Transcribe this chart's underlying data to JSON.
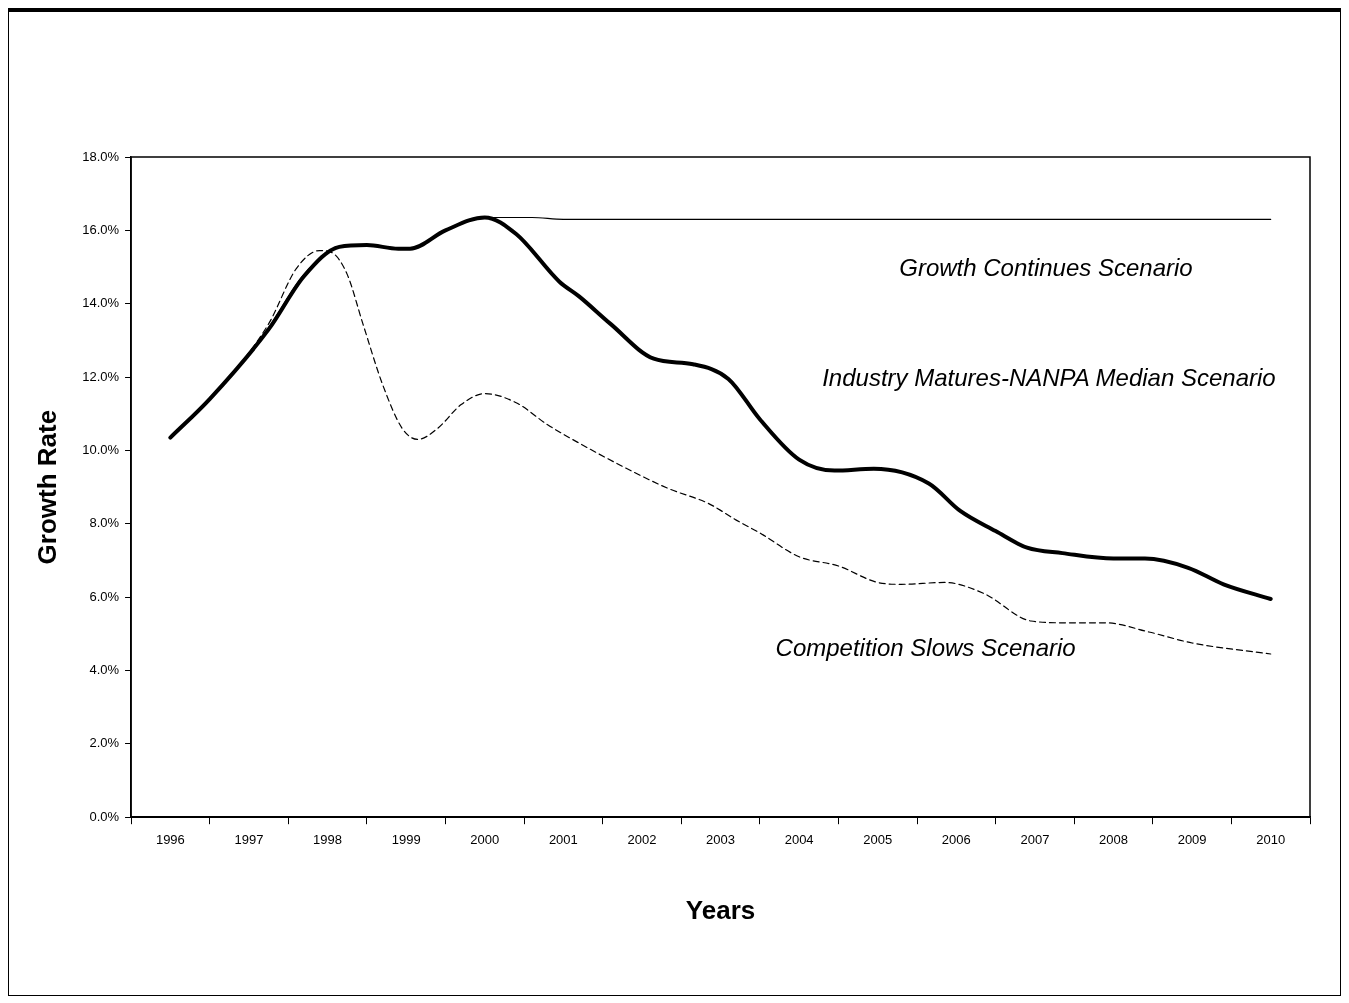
{
  "chart_data": {
    "type": "line",
    "xlabel": "Years",
    "ylabel": "Growth Rate",
    "xlim": [
      1995.5,
      2010.5
    ],
    "xticks": [
      {
        "value": 1995.5,
        "label": null
      },
      {
        "value": 1996,
        "label": "1996"
      },
      {
        "value": 1996.5,
        "label": null
      },
      {
        "value": 1997,
        "label": "1997"
      },
      {
        "value": 1997.5,
        "label": null
      },
      {
        "value": 1998,
        "label": "1998"
      },
      {
        "value": 1998.5,
        "label": null
      },
      {
        "value": 1999,
        "label": "1999"
      },
      {
        "value": 1999.5,
        "label": null
      },
      {
        "value": 2000,
        "label": "2000"
      },
      {
        "value": 2000.5,
        "label": null
      },
      {
        "value": 2001,
        "label": "2001"
      },
      {
        "value": 2001.5,
        "label": null
      },
      {
        "value": 2002,
        "label": "2002"
      },
      {
        "value": 2002.5,
        "label": null
      },
      {
        "value": 2003,
        "label": "2003"
      },
      {
        "value": 2003.5,
        "label": null
      },
      {
        "value": 2004,
        "label": "2004"
      },
      {
        "value": 2004.5,
        "label": null
      },
      {
        "value": 2005,
        "label": "2005"
      },
      {
        "value": 2005.5,
        "label": null
      },
      {
        "value": 2006,
        "label": "2006"
      },
      {
        "value": 2006.5,
        "label": null
      },
      {
        "value": 2007,
        "label": "2007"
      },
      {
        "value": 2007.5,
        "label": null
      },
      {
        "value": 2008,
        "label": "2008"
      },
      {
        "value": 2008.5,
        "label": null
      },
      {
        "value": 2009,
        "label": "2009"
      },
      {
        "value": 2009.5,
        "label": null
      },
      {
        "value": 2010,
        "label": "2010"
      },
      {
        "value": 2010.5,
        "label": null
      }
    ],
    "ylim": [
      0,
      18
    ],
    "yticks": [
      {
        "value": 0,
        "label": "0.0%"
      },
      {
        "value": 2,
        "label": "2.0%"
      },
      {
        "value": 4,
        "label": "4.0%"
      },
      {
        "value": 6,
        "label": "6.0%"
      },
      {
        "value": 8,
        "label": "8.0%"
      },
      {
        "value": 10,
        "label": "10.0%"
      },
      {
        "value": 12,
        "label": "12.0%"
      },
      {
        "value": 14,
        "label": "14.0%"
      },
      {
        "value": 16,
        "label": "16.0%"
      },
      {
        "value": 18,
        "label": "18.0%"
      }
    ],
    "grid": false,
    "legend": false,
    "marker": "none",
    "series": [
      {
        "name": "Growth Continues Scenario",
        "color": "#000000",
        "line_style": "solid",
        "x": [
          1996,
          1996.5,
          1997.25,
          1997.7,
          1998.15,
          1998.5,
          1998.9,
          1999.05,
          1999.5,
          2000,
          2000.6,
          2001,
          2010
        ],
        "values": [
          10.35,
          11.4,
          13.35,
          14.8,
          15.55,
          15.6,
          15.5,
          15.5,
          16,
          16.35,
          16.35,
          16.3,
          16.3
        ]
      },
      {
        "name": "Industry Matures-NANPA Median Scenario",
        "color": "#000000",
        "line_style": "solid",
        "x": [
          1996,
          1996.5,
          1997.25,
          1997.7,
          1998.15,
          1998.5,
          1998.9,
          1999.05,
          1999.5,
          2000,
          2000.4,
          2000.95,
          2001.2,
          2001.6,
          2002.15,
          2002.65,
          2003.1,
          2003.5,
          2004,
          2004.45,
          2004.95,
          2005.65,
          2006.05,
          2006.5,
          2006.9,
          2007.35,
          2008,
          2008.4,
          2008.95,
          2009.4,
          2010
        ],
        "values": [
          10.35,
          11.4,
          13.3,
          14.75,
          15.55,
          15.6,
          15.5,
          15.5,
          16,
          16.35,
          15.9,
          14.6,
          14.2,
          13.45,
          12.5,
          12.35,
          11.95,
          10.85,
          9.75,
          9.45,
          9.5,
          9.1,
          8.35,
          7.8,
          7.35,
          7.2,
          7.05,
          7.05,
          6.8,
          6.35,
          5.95
        ]
      },
      {
        "name": "Competition Slows Scenario",
        "color": "#000000",
        "line_style": "dashed",
        "x": [
          1996,
          1996.5,
          1997.25,
          1997.6,
          1997.9,
          1998.05,
          1998.25,
          1998.45,
          1998.7,
          1998.95,
          1999.15,
          1999.4,
          1999.7,
          2000,
          2000.4,
          2000.8,
          2001.2,
          2001.95,
          2002.35,
          2002.85,
          2003.2,
          2003.5,
          2004,
          2004.5,
          2005,
          2005.3,
          2005.85,
          2006.35,
          2006.95,
          2007.4,
          2007.9,
          2008.45,
          2009,
          2010
        ],
        "values": [
          10.35,
          11.4,
          13.45,
          14.95,
          15.45,
          15.4,
          14.8,
          13.45,
          11.8,
          10.6,
          10.3,
          10.6,
          11.25,
          11.55,
          11.3,
          10.7,
          10.2,
          9.35,
          8.95,
          8.55,
          8.1,
          7.75,
          7.1,
          6.85,
          6.4,
          6.35,
          6.4,
          6.1,
          5.35,
          5.3,
          5.3,
          5.05,
          4.75,
          4.45
        ]
      }
    ]
  }
}
